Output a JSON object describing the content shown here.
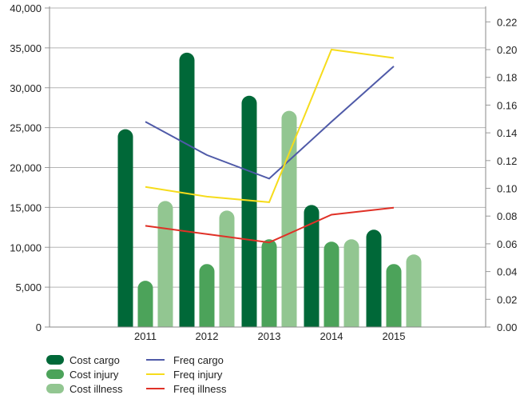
{
  "chart_data": {
    "type": "bar",
    "title": "",
    "xlabel": "",
    "ylabel": "",
    "categories": [
      "2011",
      "2012",
      "2013",
      "2014",
      "2015"
    ],
    "bar_series": [
      {
        "name": "Cost cargo",
        "values": [
          24800,
          34400,
          29000,
          15300,
          12200
        ],
        "color": "#006838"
      },
      {
        "name": "Cost injury",
        "values": [
          5800,
          7900,
          11000,
          10700,
          7900
        ],
        "color": "#4ca35a"
      },
      {
        "name": "Cost illness",
        "values": [
          15800,
          14600,
          27100,
          11000,
          9100
        ],
        "color": "#92c691"
      }
    ],
    "line_series": [
      {
        "name": "Freq cargo",
        "values": [
          0.148,
          0.124,
          0.107,
          0.148,
          0.188
        ],
        "color": "#4f5aa8"
      },
      {
        "name": "Freq injury",
        "values": [
          0.101,
          0.094,
          0.09,
          0.2,
          0.194
        ],
        "color": "#f6dc1c"
      },
      {
        "name": "Freq illness",
        "values": [
          0.073,
          0.067,
          0.061,
          0.081,
          0.086
        ],
        "color": "#e03127"
      }
    ],
    "y_left": {
      "range": [
        0,
        40000
      ],
      "ticks": [
        "0",
        "5,000",
        "10,000",
        "15,000",
        "20,000",
        "25,000",
        "30,000",
        "35,000",
        "40,000"
      ]
    },
    "y_right": {
      "range": [
        0,
        0.23
      ],
      "ticks": [
        "0.00",
        "0.02",
        "0.04",
        "0.06",
        "0.08",
        "0.10",
        "0.12",
        "0.14",
        "0.16",
        "0.18",
        "0.20",
        "0.22"
      ]
    },
    "grid": true,
    "legend_position": "bottom-left"
  }
}
